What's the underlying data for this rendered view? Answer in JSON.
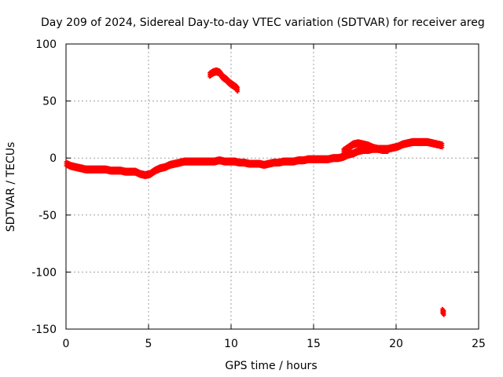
{
  "chart_data": {
    "type": "scatter",
    "title": "Day 209 of 2024, Sidereal Day-to-day VTEC variation (SDTVAR) for receiver areg",
    "xlabel": "GPS time / hours",
    "ylabel": "SDTVAR / TECUs",
    "xlim": [
      0,
      25
    ],
    "ylim": [
      -150,
      100
    ],
    "xticks": [
      0,
      5,
      10,
      15,
      20,
      25
    ],
    "yticks": [
      -150,
      -100,
      -50,
      0,
      50,
      100
    ],
    "grid": true,
    "legend": "none",
    "series": [
      {
        "name": "SDTVAR",
        "color": "#ff0000",
        "marker": "plus",
        "segments": [
          {
            "x": [
              0.0,
              0.3,
              0.6,
              0.9,
              1.2,
              1.5,
              1.8,
              2.1,
              2.4,
              2.7,
              3.0,
              3.3,
              3.6,
              3.9,
              4.2,
              4.5,
              4.8,
              5.1,
              5.4,
              5.7,
              6.0,
              6.3,
              6.6,
              6.9,
              7.2,
              7.5,
              7.8,
              8.1,
              8.4,
              8.7,
              9.0,
              9.3,
              9.6,
              9.9,
              10.2,
              10.5,
              10.8,
              11.1,
              11.4,
              11.7,
              12.0,
              12.3,
              12.6,
              12.9,
              13.2,
              13.5,
              13.8,
              14.1,
              14.4,
              14.7,
              15.0,
              15.3,
              15.6,
              15.9,
              16.2,
              16.5,
              16.8,
              17.1,
              17.4,
              17.7,
              18.0,
              18.3,
              18.6,
              18.9,
              19.2,
              19.5,
              19.8,
              20.1,
              20.4,
              20.7,
              21.0,
              21.3,
              21.6,
              21.9,
              22.2,
              22.5,
              22.8
            ],
            "y": [
              -5,
              -7,
              -8,
              -9,
              -10,
              -10,
              -10,
              -10,
              -10,
              -11,
              -11,
              -11,
              -12,
              -12,
              -12,
              -14,
              -15,
              -14,
              -11,
              -9,
              -8,
              -6,
              -5,
              -4,
              -3,
              -3,
              -3,
              -3,
              -3,
              -3,
              -3,
              -2,
              -3,
              -3,
              -3,
              -4,
              -4,
              -5,
              -5,
              -5,
              -6,
              -5,
              -4,
              -4,
              -3,
              -3,
              -3,
              -2,
              -2,
              -1,
              -1,
              -1,
              -1,
              -1,
              0,
              0,
              1,
              3,
              4,
              6,
              7,
              7,
              8,
              8,
              8,
              8,
              9,
              10,
              12,
              13,
              14,
              14,
              14,
              14,
              13,
              12,
              11
            ]
          },
          {
            "x": [
              16.8,
              17.1,
              17.4,
              17.7,
              18.0,
              18.3,
              18.6,
              18.9,
              19.2,
              19.5
            ],
            "y": [
              6,
              9,
              12,
              13,
              12,
              11,
              9,
              8,
              7,
              7
            ]
          },
          {
            "x": [
              8.7,
              8.9,
              9.1,
              9.3,
              9.5,
              9.7,
              9.9,
              10.1,
              10.3,
              10.4
            ],
            "y": [
              73,
              75,
              76,
              75,
              71,
              69,
              66,
              64,
              62,
              60
            ]
          },
          {
            "x": [
              22.8,
              22.9
            ],
            "y": [
              -134,
              -136
            ]
          }
        ]
      }
    ]
  }
}
